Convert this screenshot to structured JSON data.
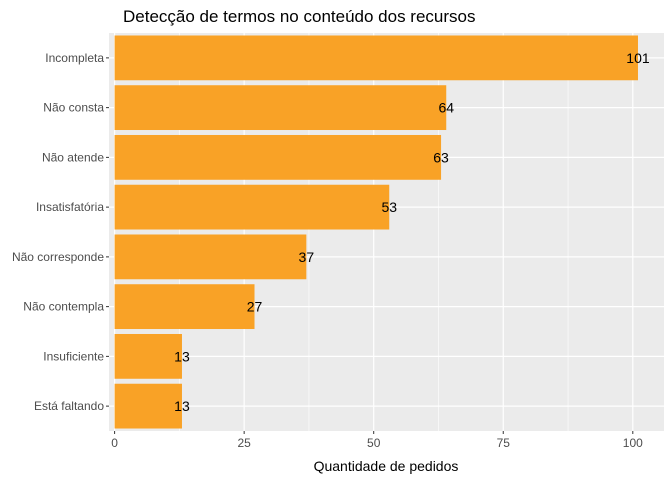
{
  "chart_data": {
    "type": "bar",
    "orientation": "horizontal",
    "title": "Detecção de termos no conteúdo dos recursos",
    "xlabel": "Quantidade de pedidos",
    "ylabel": "",
    "categories": [
      "Incompleta",
      "Não consta",
      "Não atende",
      "Insatisfatória",
      "Não corresponde",
      "Não contempla",
      "Insuficiente",
      "Está faltando"
    ],
    "values": [
      101,
      64,
      63,
      53,
      37,
      27,
      13,
      13
    ],
    "x_ticks": [
      0,
      25,
      50,
      75,
      100
    ],
    "xlim": [
      0,
      106
    ],
    "bar_color": "#F9A226",
    "panel_background": "#EBEBEB",
    "grid": true,
    "legend": "none",
    "data_labels": true
  }
}
